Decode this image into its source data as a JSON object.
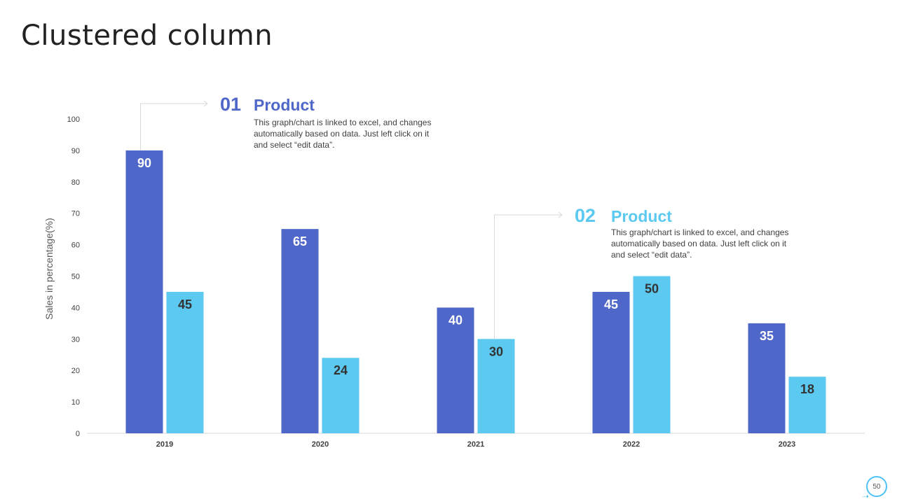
{
  "slide": {
    "title": "Clustered column",
    "page_number": "50"
  },
  "colors": {
    "series1": "#4F67C8",
    "series2": "#5BC9F0",
    "axis": "#d9d9d9",
    "tick_text": "#404040"
  },
  "callouts": [
    {
      "number": "01",
      "heading": "Product",
      "body": "This graph/chart is linked to excel, and changes automatically based on data. Just left click on it and select “edit data”."
    },
    {
      "number": "02",
      "heading": "Product",
      "body": "This graph/chart is linked to excel, and changes automatically based on data. Just left click on it and select “edit data”."
    }
  ],
  "chart_data": {
    "type": "bar",
    "title": "",
    "xlabel": "",
    "ylabel": "Sales in percentage(%)",
    "categories": [
      "2019",
      "2020",
      "2021",
      "2022",
      "2023"
    ],
    "series": [
      {
        "name": "Product 01",
        "values": [
          90,
          65,
          40,
          45,
          35
        ]
      },
      {
        "name": "Product 02",
        "values": [
          45,
          24,
          30,
          50,
          18
        ]
      }
    ],
    "ylim": [
      0,
      100
    ],
    "yticks": [
      0,
      10,
      20,
      30,
      40,
      50,
      60,
      70,
      80,
      90,
      100
    ],
    "grid": false,
    "data_labels": true
  }
}
